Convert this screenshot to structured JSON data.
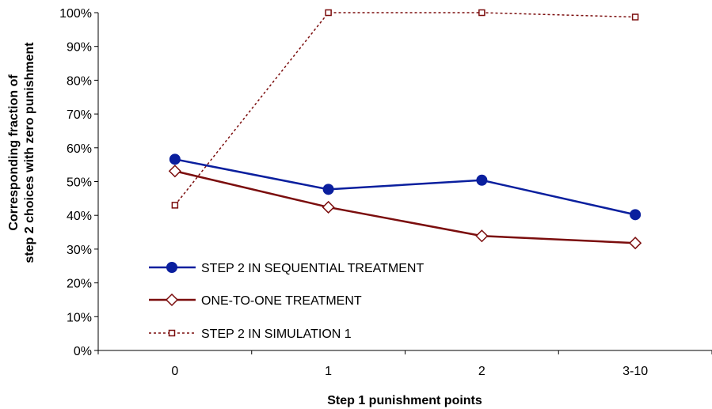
{
  "chart_data": {
    "type": "line",
    "title": "",
    "xlabel": "Step 1 punishment points",
    "ylabel_lines": [
      "Corresponding fraction of",
      "step 2 choices with zero punishment"
    ],
    "categories": [
      "0",
      "1",
      "2",
      "3-10"
    ],
    "ylim": [
      0,
      100
    ],
    "y_ticks": [
      "0%",
      "10%",
      "20%",
      "30%",
      "40%",
      "50%",
      "60%",
      "70%",
      "80%",
      "90%",
      "100%"
    ],
    "grid": false,
    "legend_position": "bottom-left",
    "series": [
      {
        "name": "STEP 2 IN SEQUENTIAL TREATMENT",
        "values": [
          56.6,
          47.7,
          50.4,
          40.2
        ],
        "color": "#0a1f9e",
        "marker": "filled-circle",
        "line": "solid"
      },
      {
        "name": "ONE-TO-ONE TREATMENT",
        "values": [
          53.1,
          42.4,
          33.9,
          31.8
        ],
        "color": "#7b0d0d",
        "marker": "open-diamond",
        "line": "solid"
      },
      {
        "name": "STEP 2 IN SIMULATION 1",
        "values": [
          43.0,
          100.0,
          100.0,
          98.7
        ],
        "color": "#7b0d0d",
        "marker": "open-square",
        "line": "dotted"
      }
    ]
  }
}
